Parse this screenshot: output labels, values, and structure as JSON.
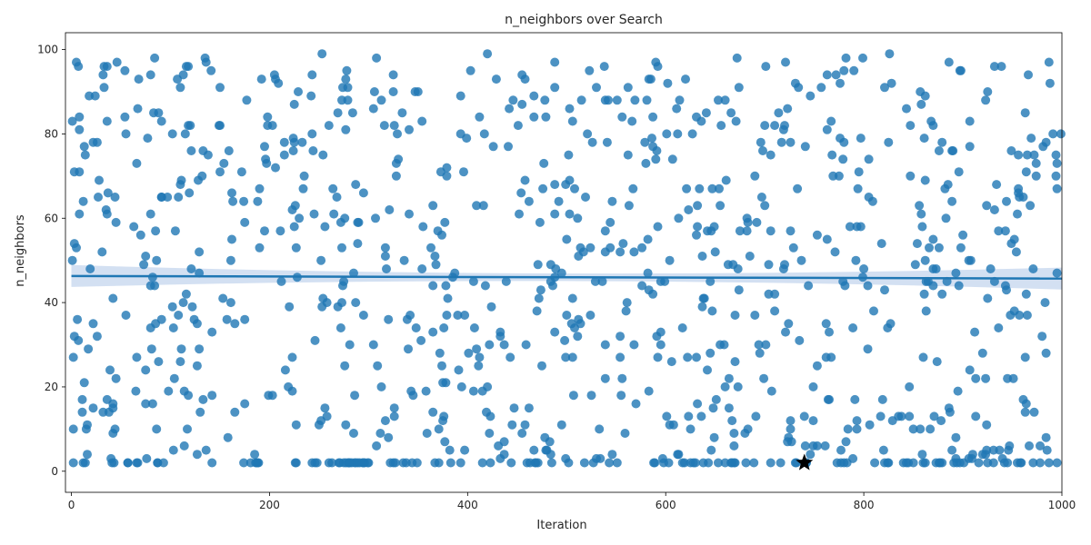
{
  "chart_data": {
    "type": "scatter",
    "title": "n_neighbors over Search",
    "xlabel": "Iteration",
    "ylabel": "n_neighbors",
    "xlim": [
      -6,
      1000
    ],
    "ylim": [
      -5,
      104
    ],
    "xticks": [
      0,
      200,
      400,
      600,
      800,
      1000
    ],
    "yticks": [
      0,
      20,
      40,
      60,
      80,
      100
    ],
    "grid": false,
    "colors": {
      "points": "#1f77b4",
      "trend": "#1f77b4",
      "band": "#aec7e8",
      "best": "#000000"
    },
    "n_points": 1000,
    "y_range": [
      2,
      99
    ],
    "trend": {
      "x": [
        0,
        1000
      ],
      "y": [
        46.3,
        45.7
      ]
    },
    "best": {
      "x": 740,
      "y": 2,
      "marker": "star"
    },
    "points_sample": [
      {
        "x": 3,
        "y": 71
      },
      {
        "x": 5,
        "y": 97
      },
      {
        "x": 8,
        "y": 81
      },
      {
        "x": 12,
        "y": 64
      },
      {
        "x": 15,
        "y": 10
      },
      {
        "x": 18,
        "y": 89
      },
      {
        "x": 22,
        "y": 35
      },
      {
        "x": 28,
        "y": 69
      },
      {
        "x": 33,
        "y": 96
      },
      {
        "x": 40,
        "y": 3
      },
      {
        "x": 55,
        "y": 80
      },
      {
        "x": 80,
        "y": 61
      }
    ]
  }
}
